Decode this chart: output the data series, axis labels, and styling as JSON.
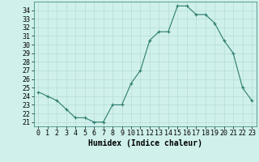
{
  "x": [
    0,
    1,
    2,
    3,
    4,
    5,
    6,
    7,
    8,
    9,
    10,
    11,
    12,
    13,
    14,
    15,
    16,
    17,
    18,
    19,
    20,
    21,
    22,
    23
  ],
  "y": [
    24.5,
    24.0,
    23.5,
    22.5,
    21.5,
    21.5,
    21.0,
    21.0,
    23.0,
    23.0,
    25.5,
    27.0,
    30.5,
    31.5,
    31.5,
    34.5,
    34.5,
    33.5,
    33.5,
    32.5,
    30.5,
    29.0,
    25.0,
    23.5
  ],
  "line_color": "#2d7d6f",
  "marker": "+",
  "marker_color": "#2d7d6f",
  "bg_color": "#cff0eb",
  "grid_color": "#b8ddd8",
  "xlabel": "Humidex (Indice chaleur)",
  "ylabel_ticks": [
    21,
    22,
    23,
    24,
    25,
    26,
    27,
    28,
    29,
    30,
    31,
    32,
    33,
    34
  ],
  "ylim": [
    20.5,
    35.0
  ],
  "xlim": [
    -0.5,
    23.5
  ],
  "tick_fontsize": 6,
  "xlabel_fontsize": 7
}
